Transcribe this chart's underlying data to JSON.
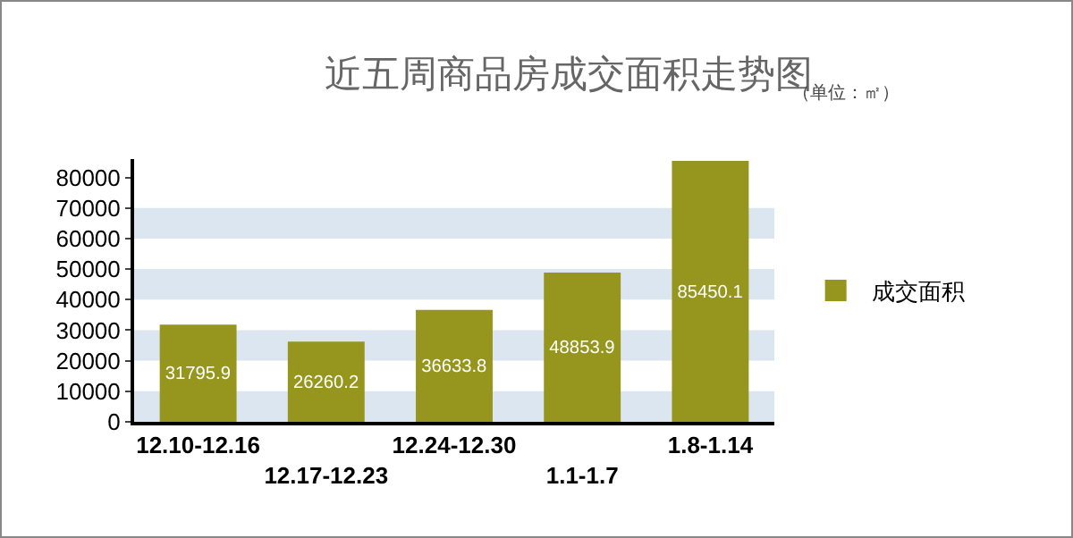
{
  "chart_data": {
    "type": "bar",
    "title": "近五周商品房成交面积走势图",
    "subtitle": "（单位：㎡）",
    "categories": [
      "12.10-12.16",
      "12.17-12.23",
      "12.24-12.30",
      "1.1-1.7",
      "1.8-1.14"
    ],
    "series": [
      {
        "name": "成交面积",
        "color": "#96961e",
        "values": [
          31795.9,
          26260.2,
          36633.8,
          48853.9,
          85450.1
        ]
      }
    ],
    "ylim": [
      0,
      86000
    ],
    "yticks": [
      0,
      10000,
      20000,
      30000,
      40000,
      50000,
      60000,
      70000,
      80000
    ],
    "bands": [
      {
        "axis": "y",
        "from": 0,
        "to": 10000,
        "color": "#dce6f0"
      },
      {
        "axis": "y",
        "from": 20000,
        "to": 30000,
        "color": "#dce6f0"
      },
      {
        "axis": "y",
        "from": 40000,
        "to": 50000,
        "color": "#dce6f0"
      },
      {
        "axis": "y",
        "from": 60000,
        "to": 70000,
        "color": "#dce6f0"
      }
    ],
    "legend": "right",
    "data_labels": true
  }
}
